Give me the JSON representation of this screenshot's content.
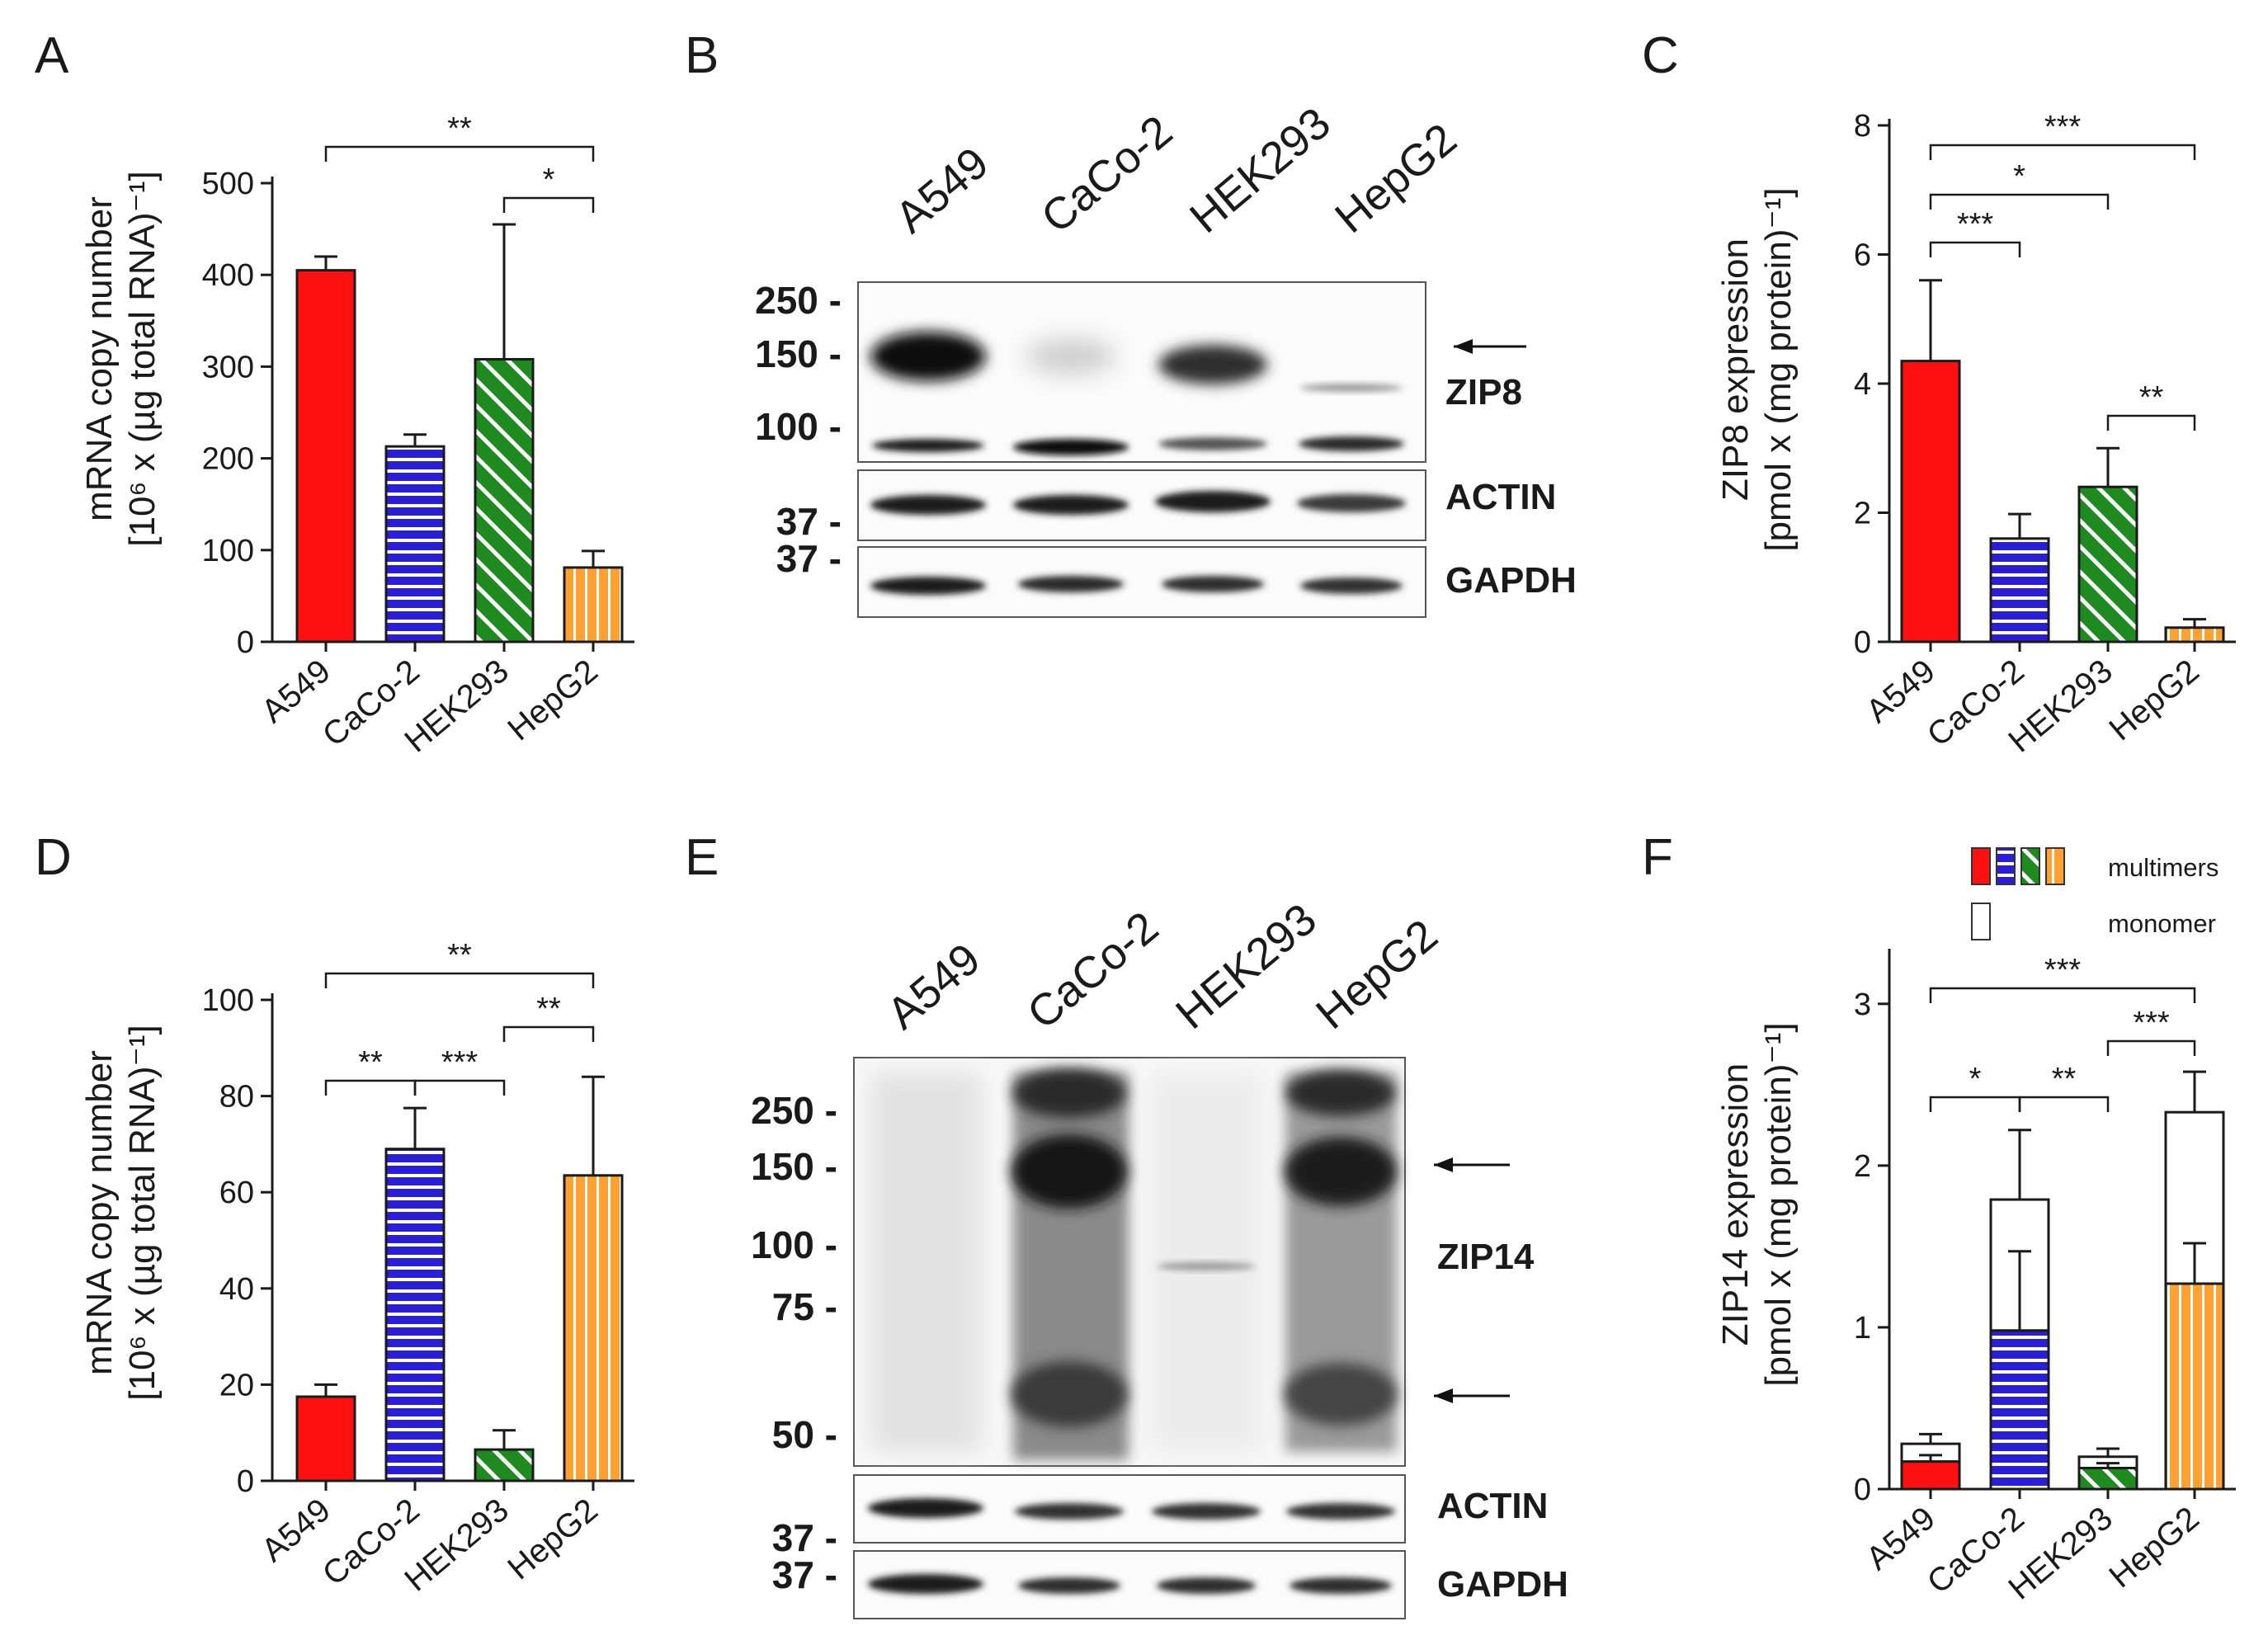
{
  "colors": {
    "A549": "#ff1010",
    "CaCo-2": "#2b1fd6",
    "HEK293": "#1f8a1f",
    "HepG2": "#ffa033",
    "axis": "#1a1a1a"
  },
  "patterns": {
    "A549": "solid",
    "CaCo-2": "horizontal-stripes",
    "HEK293": "diagonal-stripes",
    "HepG2": "vertical-stripes"
  },
  "chart_data": [
    {
      "panel": "A",
      "type": "bar",
      "categories": [
        "A549",
        "CaCo-2",
        "HEK293",
        "HepG2"
      ],
      "values": [
        405,
        213,
        308,
        81
      ],
      "error_upper": [
        420,
        226,
        455,
        99
      ],
      "ylim": [
        0,
        500
      ],
      "yticks": [
        "0",
        "100",
        "200",
        "300",
        "400",
        "500"
      ],
      "ylabel_line1": "mRNA copy number",
      "ylabel_line2": "[10⁶ x (µg total RNA)⁻¹]",
      "significance": [
        {
          "from": "A549",
          "to": "HepG2",
          "label": "**"
        },
        {
          "from": "HEK293",
          "to": "HepG2",
          "label": "*"
        }
      ]
    },
    {
      "panel": "C",
      "type": "bar",
      "categories": [
        "A549",
        "CaCo-2",
        "HEK293",
        "HepG2"
      ],
      "values": [
        4.35,
        1.6,
        2.4,
        0.22
      ],
      "error_upper": [
        5.6,
        1.98,
        3.0,
        0.35
      ],
      "ylim": [
        0,
        8
      ],
      "yticks": [
        "0",
        "2",
        "4",
        "6",
        "8"
      ],
      "ylabel_line1": "ZIP8 expression",
      "ylabel_line2": "[pmol x (mg protein)⁻¹]",
      "significance": [
        {
          "from": "A549",
          "to": "HepG2",
          "label": "***"
        },
        {
          "from": "A549",
          "to": "HEK293",
          "label": "*"
        },
        {
          "from": "A549",
          "to": "CaCo-2",
          "label": "***"
        },
        {
          "from": "HEK293",
          "to": "HepG2",
          "label": "**"
        }
      ]
    },
    {
      "panel": "D",
      "type": "bar",
      "categories": [
        "A549",
        "CaCo-2",
        "HEK293",
        "HepG2"
      ],
      "values": [
        17.5,
        69,
        6.5,
        63.5
      ],
      "error_upper": [
        20,
        77.5,
        10.5,
        84
      ],
      "ylim": [
        0,
        100
      ],
      "yticks": [
        "0",
        "20",
        "40",
        "60",
        "80",
        "100"
      ],
      "ylabel_line1": "mRNA copy number",
      "ylabel_line2": "[10⁶ x (µg total RNA)⁻¹]",
      "significance": [
        {
          "from": "A549",
          "to": "HepG2",
          "label": "**"
        },
        {
          "from": "HEK293",
          "to": "HepG2",
          "label": "**"
        },
        {
          "from": "A549",
          "to": "CaCo-2",
          "label": "**"
        },
        {
          "from": "CaCo-2",
          "to": "HEK293",
          "label": "***"
        }
      ]
    },
    {
      "panel": "F",
      "type": "bar",
      "stacked": true,
      "categories": [
        "A549",
        "CaCo-2",
        "HEK293",
        "HepG2"
      ],
      "series": [
        {
          "name": "multimers",
          "values": [
            0.17,
            0.98,
            0.13,
            1.27
          ],
          "error_upper": [
            0.21,
            1.47,
            0.16,
            1.52
          ]
        },
        {
          "name": "monomer",
          "values": [
            0.11,
            0.81,
            0.07,
            1.06
          ],
          "error_upper": [
            0.34,
            2.22,
            0.25,
            2.58
          ]
        }
      ],
      "ylim": [
        0,
        3.3
      ],
      "yticks": [
        "0",
        "1",
        "2",
        "3"
      ],
      "ylabel_line1": "ZIP14 expression",
      "ylabel_line2": "[pmol x (mg protein)⁻¹]",
      "legend": [
        "multimers",
        "monomer"
      ],
      "legend_position": "top-right",
      "significance": [
        {
          "from": "A549",
          "to": "HepG2",
          "label": "***"
        },
        {
          "from": "HEK293",
          "to": "HepG2",
          "label": "***"
        },
        {
          "from": "A549",
          "to": "CaCo-2",
          "label": "*"
        },
        {
          "from": "CaCo-2",
          "to": "HEK293",
          "label": "**"
        }
      ]
    }
  ],
  "panel_labels": {
    "A": "A",
    "B": "B",
    "C": "C",
    "D": "D",
    "E": "E",
    "F": "F"
  },
  "blots": {
    "B": {
      "lanes": [
        "A549",
        "CaCo-2",
        "HEK293",
        "HepG2"
      ],
      "markers": [
        "250 -",
        "150 -",
        "100 -",
        "37 -",
        "37 -"
      ],
      "band_labels": [
        "ZIP8",
        "ACTIN",
        "GAPDH"
      ]
    },
    "E": {
      "lanes": [
        "A549",
        "CaCo-2",
        "HEK293",
        "HepG2"
      ],
      "markers": [
        "250 -",
        "150 -",
        "100 -",
        "75 -",
        "50 -",
        "37 -",
        "37 -"
      ],
      "band_labels": [
        "ZIP14",
        "ACTIN",
        "GAPDH"
      ]
    }
  }
}
